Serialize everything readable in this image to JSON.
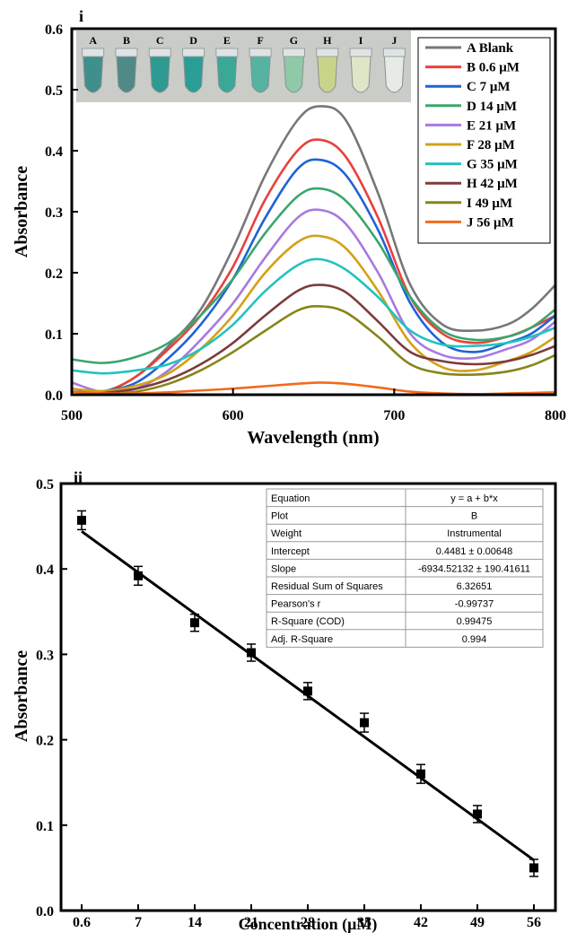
{
  "panels": [
    {
      "label": "i",
      "xlabel": "Wavelength (nm)",
      "ylabel": "Absorbance",
      "x_ticks": [
        "500",
        "600",
        "700",
        "800"
      ],
      "y_ticks": [
        "0.0",
        "0.1",
        "0.2",
        "0.3",
        "0.4",
        "0.5",
        "0.6"
      ],
      "inset_photo": {
        "description": "photo of sample vials",
        "vial_labels": [
          "A",
          "B",
          "C",
          "D",
          "E",
          "F",
          "G",
          "H",
          "I",
          "J"
        ],
        "vial_colors": [
          "#3f8f8c",
          "#4f8a88",
          "#2f9a92",
          "#2a9e95",
          "#39a896",
          "#55b3a2",
          "#8fc9a8",
          "#c8d48a",
          "#dfe6c8",
          "#e6ebe6"
        ]
      }
    },
    {
      "label": "ii",
      "xlabel": "Concentration (μM)",
      "ylabel": "Absorbance",
      "x_ticks": [
        "0.6",
        "7",
        "14",
        "21",
        "28",
        "35",
        "42",
        "49",
        "56"
      ],
      "y_ticks": [
        "0.0",
        "0.1",
        "0.2",
        "0.3",
        "0.4",
        "0.5"
      ],
      "fit_table": [
        [
          "Equation",
          "y = a + b*x"
        ],
        [
          "Plot",
          "B"
        ],
        [
          "Weight",
          "Instrumental"
        ],
        [
          "Intercept",
          "0.4481 ± 0.00648"
        ],
        [
          "Slope",
          "-6934.52132 ± 190.41611"
        ],
        [
          "Residual Sum of Squares",
          "6.32651"
        ],
        [
          "Pearson's r",
          "-0.99737"
        ],
        [
          "R-Square (COD)",
          "0.99475"
        ],
        [
          "Adj. R-Square",
          "0.994"
        ]
      ]
    }
  ],
  "chart_data": [
    {
      "type": "line",
      "xlim": [
        500,
        800
      ],
      "ylim": [
        0,
        0.6
      ],
      "grid": false,
      "legend_position": "top-right",
      "series": [
        {
          "name": "A Blank",
          "color": "#777777",
          "x": [
            500,
            520,
            540,
            560,
            580,
            600,
            620,
            640,
            654,
            670,
            690,
            710,
            730,
            750,
            770,
            785,
            800
          ],
          "y": [
            0.0,
            0.005,
            0.03,
            0.08,
            0.14,
            0.24,
            0.36,
            0.45,
            0.473,
            0.45,
            0.33,
            0.18,
            0.115,
            0.105,
            0.115,
            0.14,
            0.18
          ]
        },
        {
          "name": "B 0.6 μM",
          "color": "#e8413c",
          "x": [
            500,
            520,
            540,
            560,
            580,
            600,
            620,
            640,
            654,
            670,
            690,
            710,
            730,
            750,
            770,
            785,
            800
          ],
          "y": [
            0.0,
            0.004,
            0.03,
            0.075,
            0.13,
            0.21,
            0.32,
            0.4,
            0.418,
            0.39,
            0.29,
            0.16,
            0.1,
            0.085,
            0.095,
            0.11,
            0.13
          ]
        },
        {
          "name": "C 7 μM",
          "color": "#1f63d6",
          "x": [
            500,
            520,
            540,
            560,
            580,
            600,
            620,
            640,
            654,
            670,
            690,
            710,
            730,
            750,
            770,
            785,
            800
          ],
          "y": [
            0.005,
            0.006,
            0.02,
            0.06,
            0.115,
            0.19,
            0.29,
            0.37,
            0.385,
            0.36,
            0.27,
            0.15,
            0.085,
            0.07,
            0.085,
            0.1,
            0.13
          ]
        },
        {
          "name": "D 14 μM",
          "color": "#3aa66b",
          "x": [
            500,
            520,
            540,
            560,
            580,
            600,
            620,
            640,
            654,
            670,
            690,
            710,
            730,
            750,
            770,
            785,
            800
          ],
          "y": [
            0.058,
            0.052,
            0.062,
            0.085,
            0.13,
            0.19,
            0.265,
            0.325,
            0.338,
            0.318,
            0.25,
            0.16,
            0.105,
            0.09,
            0.095,
            0.11,
            0.14
          ]
        },
        {
          "name": "E 21 μM",
          "color": "#a57ae0",
          "x": [
            500,
            520,
            540,
            560,
            580,
            600,
            620,
            640,
            654,
            670,
            690,
            710,
            730,
            750,
            770,
            785,
            800
          ],
          "y": [
            0.02,
            0.004,
            0.01,
            0.04,
            0.09,
            0.15,
            0.225,
            0.29,
            0.303,
            0.28,
            0.2,
            0.1,
            0.065,
            0.06,
            0.075,
            0.09,
            0.12
          ]
        },
        {
          "name": "F 28 μM",
          "color": "#d4a016",
          "x": [
            500,
            520,
            540,
            560,
            580,
            600,
            620,
            640,
            654,
            670,
            690,
            710,
            730,
            750,
            770,
            785,
            800
          ],
          "y": [
            0.01,
            0.006,
            0.015,
            0.035,
            0.075,
            0.13,
            0.2,
            0.25,
            0.26,
            0.24,
            0.17,
            0.085,
            0.045,
            0.04,
            0.055,
            0.07,
            0.095
          ]
        },
        {
          "name": "G 35 μM",
          "color": "#24c2c0",
          "x": [
            500,
            520,
            540,
            560,
            580,
            600,
            620,
            640,
            654,
            670,
            690,
            710,
            730,
            750,
            770,
            785,
            800
          ],
          "y": [
            0.04,
            0.035,
            0.04,
            0.05,
            0.075,
            0.115,
            0.17,
            0.212,
            0.222,
            0.205,
            0.16,
            0.105,
            0.082,
            0.08,
            0.085,
            0.095,
            0.11
          ]
        },
        {
          "name": "H 42 μM",
          "color": "#7d3b3b",
          "x": [
            500,
            520,
            540,
            560,
            580,
            600,
            620,
            640,
            654,
            670,
            690,
            710,
            730,
            750,
            770,
            785,
            800
          ],
          "y": [
            0.0,
            0.003,
            0.01,
            0.025,
            0.05,
            0.085,
            0.13,
            0.17,
            0.18,
            0.168,
            0.12,
            0.07,
            0.055,
            0.05,
            0.055,
            0.065,
            0.08
          ]
        },
        {
          "name": "I 49 μM",
          "color": "#86861a",
          "x": [
            500,
            520,
            540,
            560,
            580,
            600,
            620,
            640,
            654,
            670,
            690,
            710,
            730,
            750,
            770,
            785,
            800
          ],
          "y": [
            0.0,
            0.0,
            0.005,
            0.018,
            0.04,
            0.07,
            0.105,
            0.138,
            0.145,
            0.135,
            0.095,
            0.05,
            0.035,
            0.033,
            0.038,
            0.048,
            0.065
          ]
        },
        {
          "name": "J 56 μM",
          "color": "#f26a1b",
          "x": [
            500,
            520,
            540,
            560,
            580,
            600,
            620,
            640,
            654,
            670,
            690,
            710,
            730,
            750,
            770,
            785,
            800
          ],
          "y": [
            0.005,
            0.002,
            0.002,
            0.004,
            0.007,
            0.01,
            0.014,
            0.018,
            0.02,
            0.018,
            0.012,
            0.005,
            0.002,
            0.001,
            0.002,
            0.003,
            0.004
          ]
        }
      ]
    },
    {
      "type": "scatter",
      "categories": [
        "0.6",
        "7",
        "14",
        "21",
        "28",
        "35",
        "42",
        "49",
        "56"
      ],
      "xlim": [
        0,
        56
      ],
      "ylim": [
        0,
        0.5
      ],
      "grid": false,
      "series": [
        {
          "points": [
            {
              "x": 0.6,
              "y": 0.457,
              "err": 0.011
            },
            {
              "x": 7,
              "y": 0.392,
              "err": 0.011
            },
            {
              "x": 14,
              "y": 0.337,
              "err": 0.01
            },
            {
              "x": 21,
              "y": 0.302,
              "err": 0.01
            },
            {
              "x": 28,
              "y": 0.257,
              "err": 0.01
            },
            {
              "x": 35,
              "y": 0.22,
              "err": 0.011
            },
            {
              "x": 42,
              "y": 0.16,
              "err": 0.011
            },
            {
              "x": 49,
              "y": 0.113,
              "err": 0.01
            },
            {
              "x": 56,
              "y": 0.05,
              "err": 0.01
            }
          ]
        }
      ],
      "fit_line": {
        "x": [
          0.6,
          56
        ],
        "y": [
          0.444,
          0.059
        ]
      }
    }
  ]
}
